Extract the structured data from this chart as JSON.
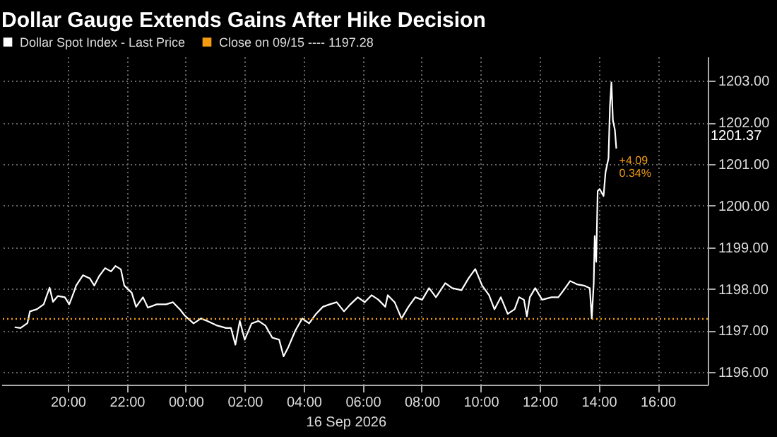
{
  "chart_data": {
    "type": "line",
    "title": "Dollar Gauge Extends Gains After Hike Decision",
    "xlabel": "16 Sep 2026",
    "x": [
      "2026-09-15T18:12",
      "2026-09-15T18:24",
      "2026-09-15T18:38",
      "2026-09-15T18:43",
      "2026-09-15T18:57",
      "2026-09-15T19:11",
      "2026-09-15T19:23",
      "2026-09-15T19:30",
      "2026-09-15T19:40",
      "2026-09-15T19:54",
      "2026-09-15T20:03",
      "2026-09-15T20:12",
      "2026-09-15T20:17",
      "2026-09-15T20:31",
      "2026-09-15T20:45",
      "2026-09-15T20:54",
      "2026-09-15T21:04",
      "2026-09-15T21:16",
      "2026-09-15T21:28",
      "2026-09-15T21:37",
      "2026-09-15T21:48",
      "2026-09-15T21:55",
      "2026-09-15T22:10",
      "2026-09-15T22:19",
      "2026-09-15T22:33",
      "2026-09-15T22:43",
      "2026-09-15T23:01",
      "2026-09-15T23:20",
      "2026-09-15T23:34",
      "2026-09-15T23:48",
      "2026-09-15T23:58",
      "2026-09-16T00:16",
      "2026-09-16T00:31",
      "2026-09-16T00:44",
      "2026-09-16T01:04",
      "2026-09-16T01:22",
      "2026-09-16T01:32",
      "2026-09-16T01:41",
      "2026-09-16T01:50",
      "2026-09-16T02:00",
      "2026-09-16T02:14",
      "2026-09-16T02:28",
      "2026-09-16T02:42",
      "2026-09-16T02:56",
      "2026-09-16T03:10",
      "2026-09-16T03:19",
      "2026-09-16T03:29",
      "2026-09-16T03:43",
      "2026-09-16T03:57",
      "2026-09-16T04:11",
      "2026-09-16T04:25",
      "2026-09-16T04:39",
      "2026-09-16T04:53",
      "2026-09-16T05:07",
      "2026-09-16T05:22",
      "2026-09-16T05:35",
      "2026-09-16T05:50",
      "2026-09-16T06:04",
      "2026-09-16T06:18",
      "2026-09-16T06:32",
      "2026-09-16T06:46",
      "2026-09-16T06:51",
      "2026-09-16T07:05",
      "2026-09-16T07:19",
      "2026-09-16T07:33",
      "2026-09-16T07:47",
      "2026-09-16T08:01",
      "2026-09-16T08:15",
      "2026-09-16T08:29",
      "2026-09-16T08:48",
      "2026-09-16T09:02",
      "2026-09-16T09:21",
      "2026-09-16T09:35",
      "2026-09-16T09:49",
      "2026-09-16T10:03",
      "2026-09-16T10:17",
      "2026-09-16T10:28",
      "2026-09-16T10:41",
      "2026-09-16T10:55",
      "2026-09-16T11:09",
      "2026-09-16T11:18",
      "2026-09-16T11:28",
      "2026-09-16T11:34",
      "2026-09-16T11:40",
      "2026-09-16T11:51",
      "2026-09-16T12:05",
      "2026-09-16T12:24",
      "2026-09-16T12:38",
      "2026-09-16T12:52",
      "2026-09-16T13:02",
      "2026-09-16T13:16",
      "2026-09-16T13:30",
      "2026-09-16T13:42",
      "2026-09-16T13:46",
      "2026-09-16T13:50",
      "2026-09-16T13:52",
      "2026-09-16T13:55",
      "2026-09-16T13:58",
      "2026-09-16T14:02",
      "2026-09-16T14:10",
      "2026-09-16T14:14",
      "2026-09-16T14:20",
      "2026-09-16T14:23",
      "2026-09-16T14:26",
      "2026-09-16T14:29",
      "2026-09-16T14:33",
      "2026-09-16T14:36"
    ],
    "series": [
      {
        "name": "Dollar Spot Index - Last Price",
        "color": "#ffffff",
        "values": [
          1197.08,
          1197.06,
          1197.18,
          1197.46,
          1197.51,
          1197.63,
          1198.03,
          1197.69,
          1197.83,
          1197.8,
          1197.63,
          1197.91,
          1198.08,
          1198.33,
          1198.25,
          1198.08,
          1198.31,
          1198.5,
          1198.42,
          1198.55,
          1198.47,
          1198.08,
          1197.91,
          1197.57,
          1197.8,
          1197.55,
          1197.63,
          1197.63,
          1197.68,
          1197.51,
          1197.36,
          1197.17,
          1197.29,
          1197.23,
          1197.12,
          1197.06,
          1197.06,
          1196.66,
          1197.23,
          1196.78,
          1197.17,
          1197.23,
          1197.12,
          1196.83,
          1196.78,
          1196.38,
          1196.61,
          1197.0,
          1197.29,
          1197.17,
          1197.4,
          1197.57,
          1197.63,
          1197.68,
          1197.46,
          1197.63,
          1197.8,
          1197.68,
          1197.85,
          1197.74,
          1197.57,
          1197.85,
          1197.68,
          1197.29,
          1197.57,
          1197.8,
          1197.74,
          1198.02,
          1197.8,
          1198.14,
          1198.02,
          1197.97,
          1198.25,
          1198.48,
          1198.08,
          1197.85,
          1197.51,
          1197.8,
          1197.4,
          1197.51,
          1197.8,
          1197.74,
          1197.34,
          1197.8,
          1198.02,
          1197.74,
          1197.8,
          1197.8,
          1198.02,
          1198.19,
          1198.11,
          1198.08,
          1198.02,
          1197.29,
          1198.14,
          1199.27,
          1198.65,
          1200.35,
          1200.4,
          1200.23,
          1200.8,
          1201.14,
          1202.39,
          1202.96,
          1202.05,
          1201.82,
          1201.37
        ]
      }
    ],
    "xlim": [
      "2026-09-15T17:45",
      "2026-09-16T17:42"
    ],
    "xticks": [
      {
        "value": "2026-09-15T20:00",
        "label": "20:00"
      },
      {
        "value": "2026-09-15T22:00",
        "label": "22:00"
      },
      {
        "value": "2026-09-16T00:00",
        "label": "00:00"
      },
      {
        "value": "2026-09-16T02:00",
        "label": "02:00"
      },
      {
        "value": "2026-09-16T04:00",
        "label": "04:00"
      },
      {
        "value": "2026-09-16T06:00",
        "label": "06:00"
      },
      {
        "value": "2026-09-16T08:00",
        "label": "08:00"
      },
      {
        "value": "2026-09-16T10:00",
        "label": "10:00"
      },
      {
        "value": "2026-09-16T12:00",
        "label": "12:00"
      },
      {
        "value": "2026-09-16T14:00",
        "label": "14:00"
      },
      {
        "value": "2026-09-16T16:00",
        "label": "16:00"
      }
    ],
    "ylim": [
      1195.7,
      1203.58
    ],
    "yticks": [
      {
        "value": 1196,
        "label": "1196.00"
      },
      {
        "value": 1197,
        "label": "1197.00"
      },
      {
        "value": 1198,
        "label": "1198.00"
      },
      {
        "value": 1199,
        "label": "1199.00"
      },
      {
        "value": 1200,
        "label": "1200.00"
      },
      {
        "value": 1201,
        "label": "1201.00"
      },
      {
        "value": 1202,
        "label": "1202.00"
      },
      {
        "value": 1203,
        "label": "1203.00"
      }
    ],
    "ref_lines": [
      {
        "axis": "y",
        "value": 1197.28,
        "label": "Close on 09/15 ---- 1197.28",
        "color": "#f39c12",
        "line_style": "dotted"
      }
    ],
    "annotations": [
      "1201.37",
      {
        "text": "+4.09",
        "x": "2026-09-16T14:36",
        "y": 1201.37
      },
      {
        "text": "0.34%",
        "x": "2026-09-16T14:36",
        "y": 1201.37
      }
    ],
    "grid": true,
    "legend": "top left"
  }
}
